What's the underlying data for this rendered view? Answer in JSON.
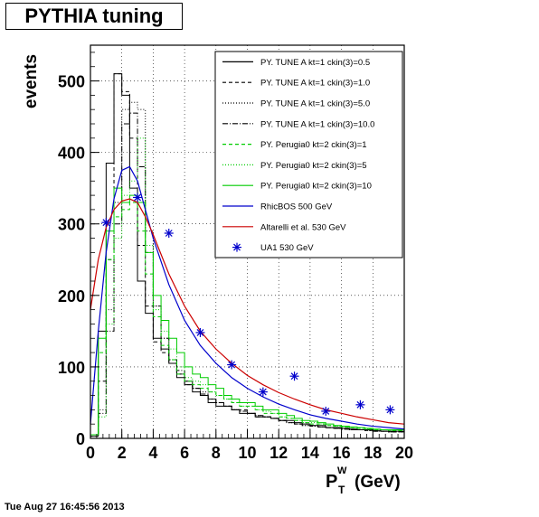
{
  "title": "PYTHIA tuning",
  "timestamp": "Tue Aug 27 16:45:56 2013",
  "chart_data": {
    "type": "line",
    "ylabel": "events",
    "xlabel_main": "P",
    "xlabel_sup": "W",
    "xlabel_sub": "T",
    "xlabel_unit": "(GeV)",
    "xlim": [
      0,
      20
    ],
    "ylim": [
      0,
      550
    ],
    "xticks": [
      0,
      2,
      4,
      6,
      8,
      10,
      12,
      14,
      16,
      18,
      20
    ],
    "yticks": [
      0,
      100,
      200,
      300,
      400,
      500
    ],
    "grid": true,
    "legend_position": "top-right",
    "bin_width": 0.5,
    "series": [
      {
        "name": "PY. TUNE A kt=1 ckin(3)=0.5",
        "kind": "hist",
        "color": "#000000",
        "dash": "",
        "values": [
          5,
          150,
          385,
          510,
          480,
          350,
          220,
          175,
          140,
          125,
          105,
          85,
          75,
          65,
          60,
          50,
          45,
          45,
          40,
          35,
          35,
          30,
          30,
          28,
          25,
          25,
          22,
          20,
          18,
          18,
          15,
          15,
          14,
          13,
          12,
          12,
          11,
          10,
          10,
          10
        ]
      },
      {
        "name": "PY. TUNE A kt=1 ckin(3)=1.0",
        "kind": "hist",
        "color": "#000000",
        "dash": "4,3",
        "values": [
          3,
          80,
          250,
          510,
          485,
          420,
          270,
          185,
          135,
          120,
          105,
          90,
          75,
          70,
          60,
          55,
          50,
          45,
          40,
          40,
          35,
          30,
          30,
          28,
          25,
          22,
          20,
          20,
          18,
          16,
          15,
          14,
          13,
          12,
          12,
          11,
          10,
          10,
          9,
          9
        ]
      },
      {
        "name": "PY. TUNE A kt=1 ckin(3)=5.0",
        "kind": "hist",
        "color": "#000000",
        "dash": "1,2",
        "values": [
          3,
          40,
          180,
          330,
          460,
          470,
          460,
          290,
          185,
          140,
          110,
          90,
          80,
          70,
          65,
          55,
          50,
          45,
          40,
          38,
          35,
          32,
          30,
          28,
          25,
          22,
          20,
          18,
          17,
          16,
          15,
          14,
          13,
          12,
          12,
          11,
          10,
          10,
          9,
          9
        ]
      },
      {
        "name": "PY. TUNE A kt=1 ckin(3)=10.0",
        "kind": "hist",
        "color": "#000000",
        "dash": "6,2,1,2",
        "values": [
          3,
          35,
          150,
          300,
          440,
          455,
          380,
          260,
          185,
          140,
          110,
          95,
          80,
          70,
          62,
          55,
          50,
          45,
          40,
          38,
          35,
          32,
          30,
          28,
          25,
          22,
          20,
          18,
          17,
          16,
          15,
          14,
          13,
          12,
          12,
          11,
          10,
          10,
          9,
          9
        ]
      },
      {
        "name": "PY. Perugia0 kt=2 ckin(3)=1",
        "kind": "hist",
        "color": "#00cc00",
        "dash": "4,3",
        "values": [
          5,
          120,
          250,
          310,
          320,
          330,
          290,
          230,
          170,
          130,
          110,
          90,
          80,
          75,
          70,
          65,
          60,
          55,
          50,
          45,
          45,
          40,
          35,
          35,
          30,
          28,
          25,
          22,
          20,
          20,
          18,
          17,
          16,
          15,
          14,
          13,
          12,
          12,
          11,
          11
        ]
      },
      {
        "name": "PY. Perugia0 kt=2 ckin(3)=5",
        "kind": "hist",
        "color": "#00cc00",
        "dash": "1,2",
        "values": [
          5,
          30,
          160,
          280,
          340,
          360,
          420,
          270,
          180,
          150,
          125,
          100,
          85,
          80,
          75,
          65,
          60,
          55,
          50,
          45,
          45,
          40,
          38,
          35,
          30,
          28,
          25,
          22,
          22,
          20,
          18,
          17,
          16,
          15,
          14,
          13,
          12,
          12,
          11,
          11
        ]
      },
      {
        "name": "PY. Perugia0 kt=2 ckin(3)=10",
        "kind": "hist",
        "color": "#00cc00",
        "dash": "",
        "values": [
          5,
          140,
          290,
          350,
          330,
          340,
          330,
          260,
          200,
          165,
          140,
          120,
          100,
          90,
          85,
          75,
          70,
          60,
          55,
          50,
          50,
          45,
          40,
          40,
          35,
          32,
          28,
          25,
          24,
          22,
          20,
          18,
          17,
          16,
          15,
          14,
          13,
          12,
          12,
          12
        ]
      },
      {
        "name": "RhicBOS 500 GeV",
        "kind": "curve",
        "color": "#0000cc",
        "dash": "",
        "x": [
          0,
          0.5,
          1,
          1.5,
          2,
          2.5,
          3,
          3.5,
          4,
          5,
          6,
          7,
          8,
          9,
          10,
          11,
          12,
          13,
          14,
          15,
          16,
          17,
          18,
          19,
          20
        ],
        "y": [
          20,
          150,
          260,
          335,
          375,
          380,
          360,
          320,
          280,
          215,
          165,
          130,
          105,
          85,
          70,
          58,
          48,
          40,
          33,
          28,
          24,
          20,
          17,
          15,
          13
        ]
      },
      {
        "name": "Altarelli et al. 530 GeV",
        "kind": "curve",
        "color": "#cc0000",
        "dash": "",
        "x": [
          0,
          0.5,
          1,
          1.5,
          2,
          2.5,
          3,
          3.5,
          4,
          5,
          6,
          7,
          8,
          9,
          10,
          11,
          12,
          13,
          14,
          15,
          16,
          17,
          18,
          19,
          20
        ],
        "y": [
          180,
          250,
          295,
          320,
          332,
          335,
          330,
          310,
          285,
          230,
          185,
          150,
          125,
          105,
          88,
          75,
          64,
          55,
          47,
          40,
          35,
          30,
          26,
          22,
          20
        ]
      },
      {
        "name": "UA1 530 GeV",
        "kind": "points",
        "color": "#0000cc",
        "dash": "",
        "x": [
          1,
          3,
          5,
          7,
          9,
          11,
          13,
          15,
          17.2,
          19.1
        ],
        "y": [
          302,
          337,
          287,
          148,
          103,
          65,
          87,
          38,
          47,
          40
        ]
      }
    ]
  }
}
